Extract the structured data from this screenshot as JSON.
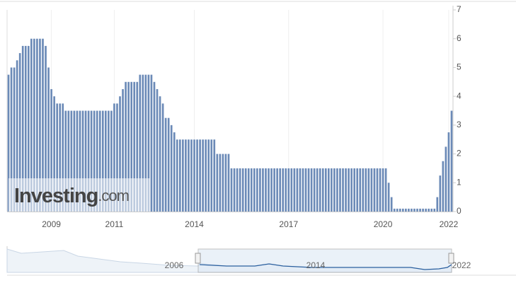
{
  "chart_data": {
    "type": "bar",
    "categories": [
      null,
      null,
      null,
      null,
      null,
      null,
      null,
      null,
      null,
      null,
      null,
      null,
      null,
      null,
      null,
      "2009",
      null,
      null,
      null,
      null,
      null,
      null,
      null,
      null,
      null,
      null,
      null,
      null,
      null,
      null,
      null,
      null,
      null,
      null,
      null,
      null,
      null,
      "2011",
      null,
      null,
      null,
      null,
      null,
      null,
      null,
      null,
      null,
      null,
      null,
      null,
      null,
      null,
      null,
      null,
      null,
      null,
      null,
      null,
      null,
      null,
      null,
      null,
      null,
      null,
      null,
      "2014",
      null,
      null,
      null,
      null,
      null,
      null,
      null,
      null,
      null,
      null,
      null,
      null,
      null,
      null,
      null,
      null,
      null,
      null,
      null,
      null,
      null,
      null,
      null,
      null,
      null,
      null,
      null,
      null,
      null,
      null,
      null,
      null,
      "2017",
      null,
      null,
      null,
      null,
      null,
      null,
      null,
      null,
      null,
      null,
      null,
      null,
      null,
      null,
      null,
      null,
      null,
      null,
      null,
      null,
      null,
      null,
      null,
      null,
      null,
      null,
      null,
      null,
      null,
      null,
      null,
      null,
      "2020",
      null,
      null,
      null,
      null,
      null,
      null,
      null,
      null,
      null,
      null,
      null,
      null,
      null,
      null,
      null,
      null,
      null,
      null,
      null,
      null,
      null,
      null,
      "2022",
      null
    ],
    "values": [
      4.75,
      5,
      5,
      5.25,
      5.5,
      5.75,
      5.75,
      5.75,
      6,
      6,
      6,
      6,
      6,
      5.75,
      5,
      4.25,
      4,
      3.75,
      3.75,
      3.75,
      3.5,
      3.5,
      3.5,
      3.5,
      3.5,
      3.5,
      3.5,
      3.5,
      3.5,
      3.5,
      3.5,
      3.5,
      3.5,
      3.5,
      3.5,
      3.5,
      3.5,
      3.75,
      3.75,
      4,
      4.25,
      4.5,
      4.5,
      4.5,
      4.5,
      4.5,
      4.75,
      4.75,
      4.75,
      4.75,
      4.75,
      4.5,
      4.25,
      4,
      3.75,
      3.25,
      3.25,
      3,
      2.75,
      2.5,
      2.5,
      2.5,
      2.5,
      2.5,
      2.5,
      2.5,
      2.5,
      2.5,
      2.5,
      2.5,
      2.5,
      2.5,
      2.5,
      2,
      2,
      2,
      2,
      2,
      1.5,
      1.5,
      1.5,
      1.5,
      1.5,
      1.5,
      1.5,
      1.5,
      1.5,
      1.5,
      1.5,
      1.5,
      1.5,
      1.5,
      1.5,
      1.5,
      1.5,
      1.5,
      1.5,
      1.5,
      1.5,
      1.5,
      1.5,
      1.5,
      1.5,
      1.5,
      1.5,
      1.5,
      1.5,
      1.5,
      1.5,
      1.5,
      1.5,
      1.5,
      1.5,
      1.5,
      1.5,
      1.5,
      1.5,
      1.5,
      1.5,
      1.5,
      1.5,
      1.5,
      1.5,
      1.5,
      1.5,
      1.5,
      1.5,
      1.5,
      1.5,
      1.5,
      1.5,
      1.5,
      1.5,
      1,
      0.5,
      0.1,
      0.1,
      0.1,
      0.1,
      0.1,
      0.1,
      0.1,
      0.1,
      0.1,
      0.1,
      0.1,
      0.1,
      0.1,
      0.1,
      0.1,
      0.5,
      1.25,
      1.75,
      2.25,
      2.75,
      3.5
    ],
    "color": "#6b8ab7",
    "ylim": [
      0,
      7
    ],
    "yticks": [
      0,
      1,
      2,
      3,
      4,
      5,
      6,
      7
    ],
    "watermark": {
      "brand": "Investing",
      "suffix": ".com"
    },
    "navigator": {
      "labels": [
        "2006",
        "2014",
        "2022"
      ]
    }
  }
}
